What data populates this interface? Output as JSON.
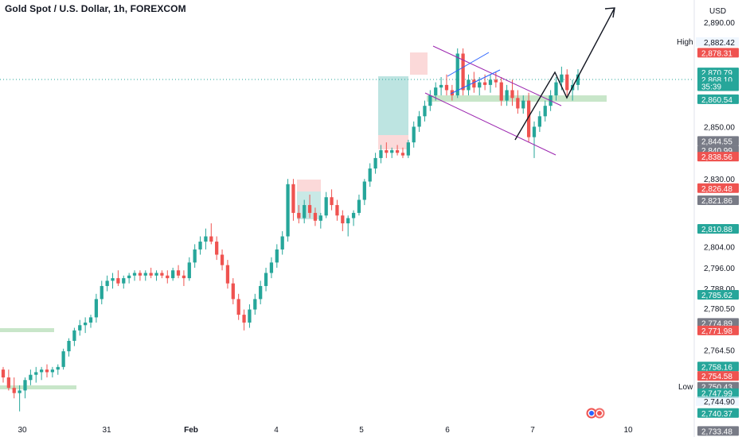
{
  "header": {
    "title": "Gold Spot / U.S. Dollar, 1h, FOREXCOM",
    "currency": "USD"
  },
  "chart_data": {
    "type": "candlestick",
    "title": "Gold Spot / U.S. Dollar, 1h, FOREXCOM",
    "ylim": [
      2733,
      2897
    ],
    "y_ticks": [
      "2,890.00",
      "2,850.00",
      "2,830.00",
      "2,804.00",
      "2,796.00",
      "2,788.00",
      "2,780.50",
      "2,764.50"
    ],
    "x_ticks": [
      "30",
      "31",
      "Feb",
      "4",
      "5",
      "6",
      "7",
      "10"
    ],
    "price_tags": [
      {
        "label": "2,882.42",
        "value": 2882.42,
        "kind": "text"
      },
      {
        "label": "2,878.31",
        "value": 2878.31,
        "kind": "red"
      },
      {
        "label": "2,870.79",
        "value": 2870.79,
        "kind": "green-small"
      },
      {
        "label": "2,868.10",
        "value": 2868.1,
        "kind": "green"
      },
      {
        "label": "35:39",
        "value": 2865.5,
        "kind": "green"
      },
      {
        "label": "2,860.54",
        "value": 2860.54,
        "kind": "green"
      },
      {
        "label": "2,844.55",
        "value": 2844.55,
        "kind": "gray"
      },
      {
        "label": "2,840.99",
        "value": 2840.99,
        "kind": "gray-small"
      },
      {
        "label": "2,838.56",
        "value": 2838.56,
        "kind": "red"
      },
      {
        "label": "2,826.48",
        "value": 2826.48,
        "kind": "red"
      },
      {
        "label": "2,821.86",
        "value": 2821.86,
        "kind": "gray"
      },
      {
        "label": "2,810.88",
        "value": 2810.88,
        "kind": "green"
      },
      {
        "label": "2,785.62",
        "value": 2785.62,
        "kind": "green"
      },
      {
        "label": "2,774.89",
        "value": 2774.89,
        "kind": "gray"
      },
      {
        "label": "2,771.98",
        "value": 2771.98,
        "kind": "red"
      },
      {
        "label": "2,758.16",
        "value": 2758.16,
        "kind": "green"
      },
      {
        "label": "2,754.58",
        "value": 2754.58,
        "kind": "red"
      },
      {
        "label": "2,750.43",
        "value": 2750.43,
        "kind": "gray"
      },
      {
        "label": "2,747.99",
        "value": 2747.99,
        "kind": "green"
      },
      {
        "label": "2,744.90",
        "value": 2744.9,
        "kind": "text"
      },
      {
        "label": "2,740.37",
        "value": 2740.37,
        "kind": "green"
      },
      {
        "label": "2,733.48",
        "value": 2733.48,
        "kind": "gray"
      }
    ],
    "high_label": "High",
    "low_label": "Low",
    "current_price": 2868.1,
    "colors": {
      "up": "#26a69a",
      "down": "#ef5350",
      "purple": "#9c27b0",
      "blue": "#2962ff",
      "arrow": "#131722",
      "zone": "#c8e6c9"
    },
    "candles": [
      [
        2757,
        2758,
        2752,
        2754
      ],
      [
        2754,
        2757,
        2749,
        2750
      ],
      [
        2750,
        2754,
        2746,
        2748
      ],
      [
        2748,
        2751,
        2741,
        2749
      ],
      [
        2749,
        2754,
        2746,
        2753
      ],
      [
        2753,
        2757,
        2751,
        2755
      ],
      [
        2755,
        2758,
        2752,
        2756
      ],
      [
        2756,
        2758,
        2753,
        2757
      ],
      [
        2757,
        2759,
        2754,
        2756
      ],
      [
        2756,
        2758,
        2754,
        2757
      ],
      [
        2757,
        2759,
        2755,
        2758
      ],
      [
        2758,
        2765,
        2757,
        2764
      ],
      [
        2764,
        2769,
        2762,
        2768
      ],
      [
        2768,
        2773,
        2766,
        2772
      ],
      [
        2772,
        2776,
        2770,
        2774
      ],
      [
        2774,
        2777,
        2771,
        2775
      ],
      [
        2775,
        2778,
        2773,
        2777
      ],
      [
        2777,
        2786,
        2775,
        2784
      ],
      [
        2784,
        2791,
        2782,
        2789
      ],
      [
        2789,
        2793,
        2787,
        2791
      ],
      [
        2791,
        2794,
        2788,
        2792
      ],
      [
        2792,
        2795,
        2789,
        2790
      ],
      [
        2790,
        2793,
        2788,
        2792
      ],
      [
        2792,
        2794,
        2790,
        2793
      ],
      [
        2793,
        2795,
        2791,
        2794
      ],
      [
        2794,
        2795,
        2791,
        2793
      ],
      [
        2793,
        2795,
        2791,
        2794
      ],
      [
        2794,
        2796,
        2792,
        2793
      ],
      [
        2793,
        2795,
        2791,
        2794
      ],
      [
        2794,
        2795,
        2792,
        2793
      ],
      [
        2793,
        2795,
        2790,
        2792
      ],
      [
        2792,
        2796,
        2791,
        2795
      ],
      [
        2795,
        2797,
        2792,
        2793
      ],
      [
        2793,
        2795,
        2789,
        2792
      ],
      [
        2792,
        2800,
        2791,
        2798
      ],
      [
        2798,
        2805,
        2796,
        2803
      ],
      [
        2803,
        2808,
        2801,
        2806
      ],
      [
        2806,
        2811,
        2803,
        2808
      ],
      [
        2808,
        2813,
        2805,
        2806
      ],
      [
        2806,
        2808,
        2799,
        2801
      ],
      [
        2801,
        2803,
        2795,
        2797
      ],
      [
        2797,
        2799,
        2788,
        2790
      ],
      [
        2790,
        2792,
        2782,
        2784
      ],
      [
        2784,
        2786,
        2776,
        2778
      ],
      [
        2778,
        2780,
        2772,
        2775
      ],
      [
        2775,
        2782,
        2773,
        2780
      ],
      [
        2780,
        2786,
        2778,
        2784
      ],
      [
        2784,
        2791,
        2782,
        2789
      ],
      [
        2789,
        2796,
        2787,
        2794
      ],
      [
        2794,
        2800,
        2792,
        2798
      ],
      [
        2798,
        2805,
        2796,
        2803
      ],
      [
        2803,
        2810,
        2801,
        2808
      ],
      [
        2808,
        2830,
        2806,
        2828
      ],
      [
        2828,
        2830,
        2814,
        2817
      ],
      [
        2817,
        2820,
        2813,
        2815
      ],
      [
        2815,
        2822,
        2813,
        2820
      ],
      [
        2820,
        2824,
        2815,
        2817
      ],
      [
        2817,
        2819,
        2812,
        2814
      ],
      [
        2814,
        2817,
        2811,
        2816
      ],
      [
        2816,
        2825,
        2815,
        2823
      ],
      [
        2823,
        2826,
        2818,
        2820
      ],
      [
        2820,
        2822,
        2814,
        2816
      ],
      [
        2816,
        2818,
        2810,
        2813
      ],
      [
        2813,
        2816,
        2808,
        2815
      ],
      [
        2815,
        2818,
        2812,
        2817
      ],
      [
        2817,
        2824,
        2816,
        2822
      ],
      [
        2822,
        2830,
        2820,
        2829
      ],
      [
        2829,
        2836,
        2827,
        2834
      ],
      [
        2834,
        2840,
        2832,
        2838
      ],
      [
        2838,
        2843,
        2836,
        2841
      ],
      [
        2841,
        2844,
        2838,
        2840
      ],
      [
        2840,
        2842,
        2838,
        2841
      ],
      [
        2841,
        2843,
        2839,
        2840
      ],
      [
        2840,
        2842,
        2838,
        2839
      ],
      [
        2839,
        2845,
        2838,
        2844
      ],
      [
        2844,
        2852,
        2842,
        2850
      ],
      [
        2850,
        2856,
        2848,
        2854
      ],
      [
        2854,
        2860,
        2852,
        2858
      ],
      [
        2858,
        2864,
        2856,
        2862
      ],
      [
        2862,
        2867,
        2860,
        2865
      ],
      [
        2865,
        2869,
        2862,
        2866
      ],
      [
        2866,
        2870,
        2862,
        2864
      ],
      [
        2864,
        2866,
        2860,
        2862
      ],
      [
        2862,
        2880,
        2861,
        2878
      ],
      [
        2878,
        2880,
        2862,
        2864
      ],
      [
        2864,
        2870,
        2862,
        2868
      ],
      [
        2868,
        2871,
        2863,
        2865
      ],
      [
        2865,
        2869,
        2862,
        2867
      ],
      [
        2867,
        2870,
        2864,
        2866
      ],
      [
        2866,
        2870,
        2863,
        2868
      ],
      [
        2868,
        2871,
        2865,
        2867
      ],
      [
        2867,
        2869,
        2858,
        2860
      ],
      [
        2860,
        2866,
        2858,
        2864
      ],
      [
        2864,
        2868,
        2858,
        2861
      ],
      [
        2861,
        2864,
        2855,
        2857
      ],
      [
        2857,
        2862,
        2855,
        2860
      ],
      [
        2860,
        2863,
        2844,
        2846
      ],
      [
        2846,
        2852,
        2838,
        2850
      ],
      [
        2850,
        2856,
        2848,
        2854
      ],
      [
        2854,
        2860,
        2852,
        2858
      ],
      [
        2858,
        2864,
        2856,
        2862
      ],
      [
        2862,
        2869,
        2860,
        2867
      ],
      [
        2867,
        2873,
        2864,
        2870
      ],
      [
        2870,
        2872,
        2862,
        2864
      ],
      [
        2864,
        2868,
        2860,
        2866
      ],
      [
        2866,
        2872,
        2864,
        2870
      ]
    ]
  },
  "footer": {
    "event_icon": "us-flag-icon"
  }
}
